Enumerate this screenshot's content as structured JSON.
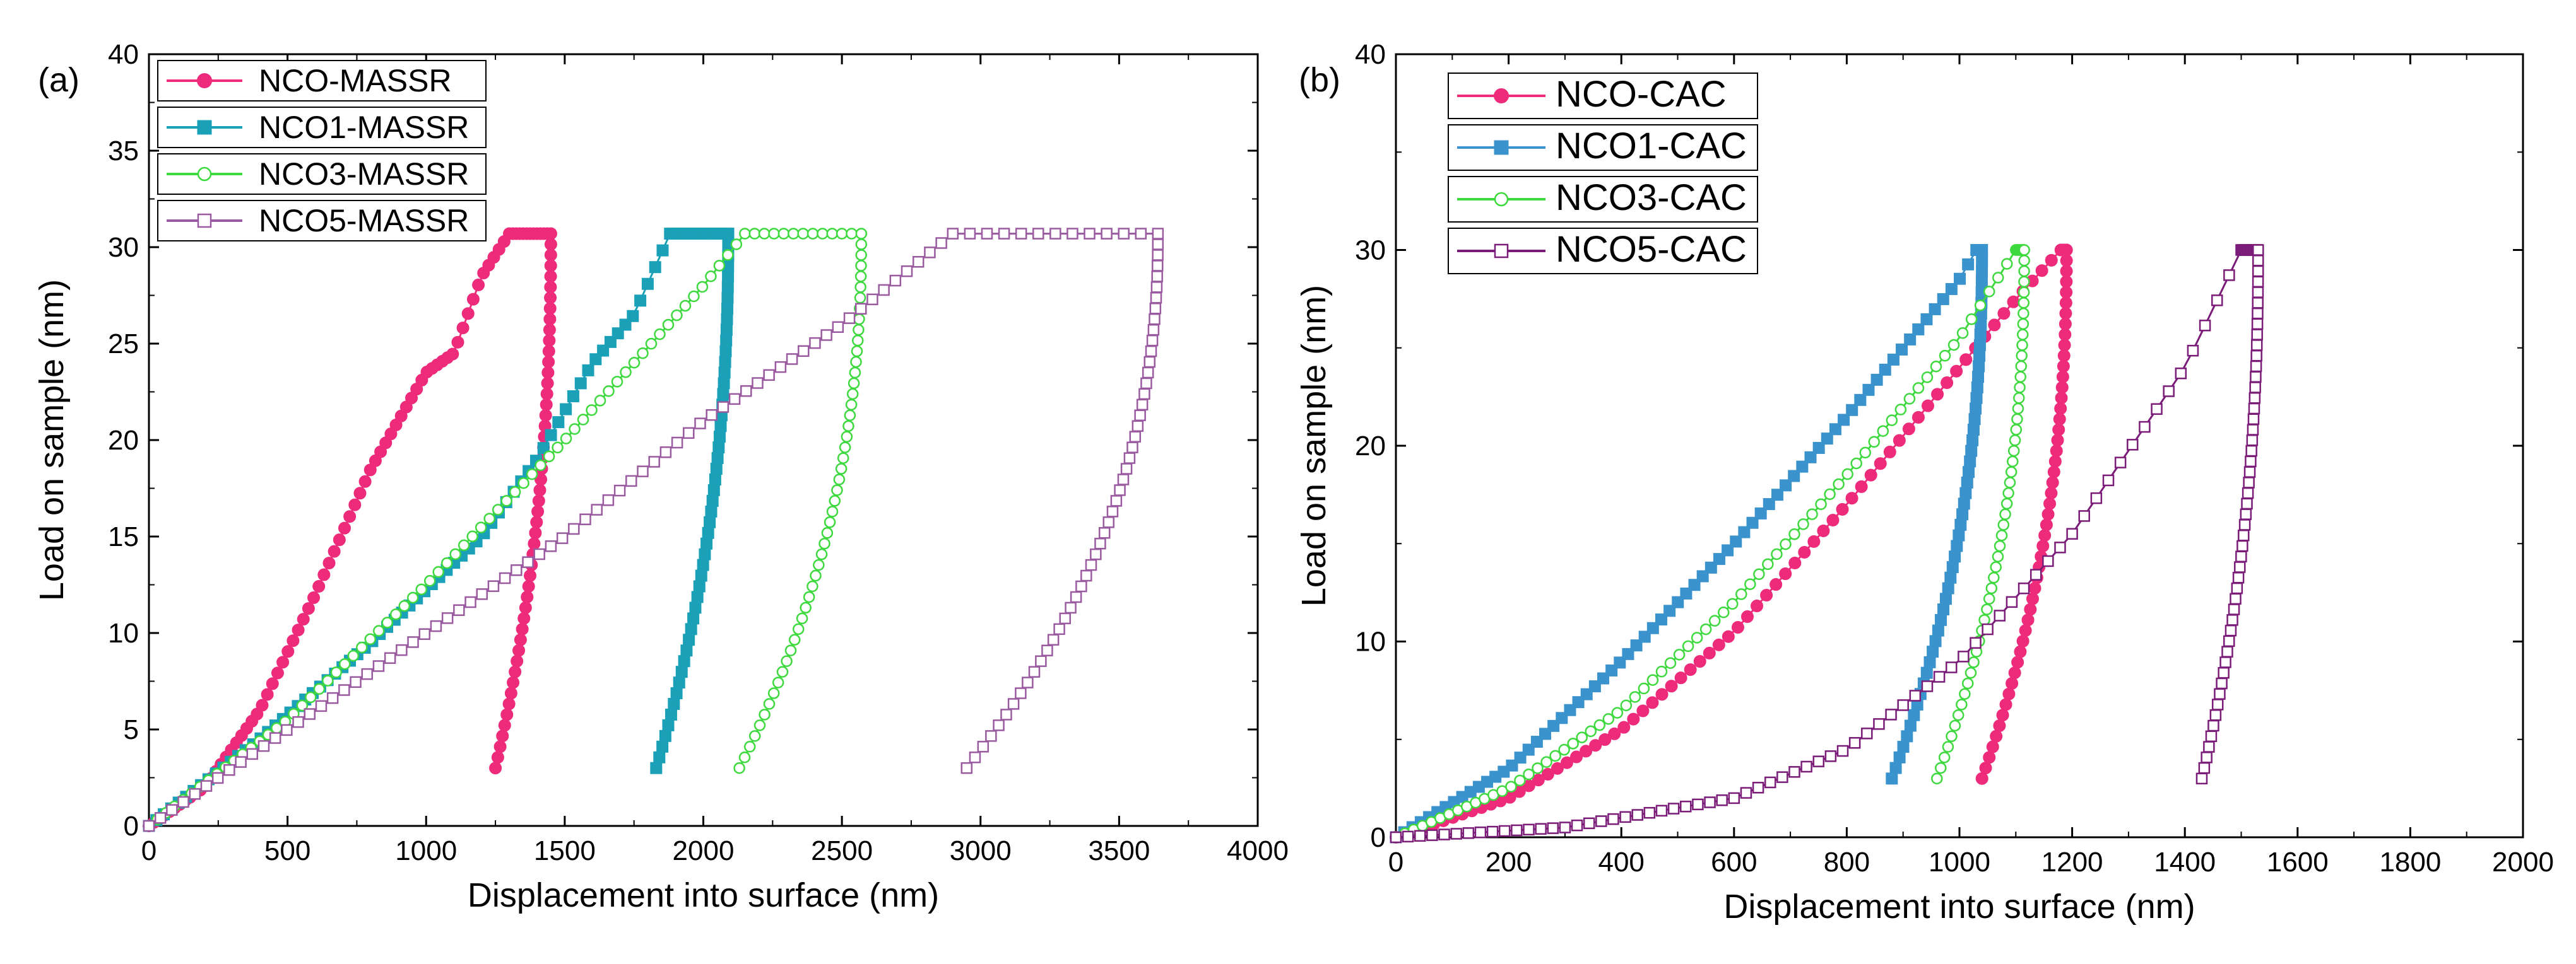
{
  "chart_data": [
    {
      "type": "scatter",
      "panel_label": "(a)",
      "xlabel": "Displacement into surface (nm)",
      "ylabel": "Load on sample (nm)",
      "xlim": [
        0,
        4000
      ],
      "ylim": [
        0,
        40
      ],
      "xticks": [
        0,
        500,
        1000,
        1500,
        2000,
        2500,
        3000,
        3500,
        4000
      ],
      "yticks": [
        0,
        5,
        10,
        15,
        20,
        25,
        30,
        35,
        40
      ],
      "xtick_labels": [
        "0",
        "500",
        "1000",
        "1500",
        "2000",
        "2500",
        "3000",
        "3500",
        "4000"
      ],
      "ytick_labels": [
        "0",
        "5",
        "10",
        "15",
        "20",
        "25",
        "30",
        "35",
        "40"
      ],
      "legend_position": "top-left",
      "series": [
        {
          "name": "NCO-MASSR",
          "color": "#ee2a7b",
          "marker": "circle-filled",
          "loading_x": [
            0,
            200,
            400,
            600,
            800,
            1000,
            1100,
            1200,
            1300
          ],
          "loading_y": [
            0,
            2,
            6,
            12,
            18.5,
            23.5,
            24.5,
            28.5,
            30.7
          ],
          "hold_end_x": 1450,
          "unload_end_x": 1250,
          "unload_end_y": 3
        },
        {
          "name": "NCO1-MASSR",
          "color": "#1aa1b8",
          "marker": "square-filled",
          "loading_x": [
            0,
            400,
            800,
            1200,
            1400,
            1600,
            1750,
            1880
          ],
          "loading_y": [
            0,
            4.5,
            9.5,
            15,
            19,
            24,
            26.5,
            30.7
          ],
          "hold_end_x": 2090,
          "unload_end_x": 1830,
          "unload_end_y": 3
        },
        {
          "name": "NCO3-MASSR",
          "color": "#3ed93e",
          "marker": "circle-open",
          "loading_x": [
            0,
            500,
            1000,
            1500,
            2000,
            2150
          ],
          "loading_y": [
            0,
            5.5,
            12.5,
            20,
            28,
            30.7
          ],
          "hold_end_x": 2570,
          "unload_end_x": 2130,
          "unload_end_y": 3
        },
        {
          "name": "NCO5-MASSR",
          "color": "#9a5aa0",
          "marker": "square-open",
          "loading_x": [
            0,
            500,
            1000,
            1500,
            2000,
            2500,
            2900
          ],
          "loading_y": [
            0,
            5,
            10,
            15,
            21,
            26,
            30.7
          ],
          "hold_end_x": 3640,
          "unload_end_x": 2950,
          "unload_end_y": 3
        }
      ]
    },
    {
      "type": "scatter",
      "panel_label": "(b)",
      "xlabel": "Displacement into surface (nm)",
      "ylabel": "Load on sample (nm)",
      "xlim": [
        0,
        2000
      ],
      "ylim": [
        0,
        40
      ],
      "xticks": [
        0,
        200,
        400,
        600,
        800,
        1000,
        1200,
        1400,
        1600,
        1800,
        2000
      ],
      "yticks": [
        0,
        10,
        20,
        30,
        40
      ],
      "xtick_labels": [
        "0",
        "200",
        "400",
        "600",
        "800",
        "1000",
        "1200",
        "1400",
        "1600",
        "1800",
        "2000"
      ],
      "ytick_labels": [
        "0",
        "10",
        "20",
        "30",
        "40"
      ],
      "legend_position": "top-left",
      "series": [
        {
          "name": "NCO-CAC",
          "color": "#ee2a7b",
          "marker": "circle-filled",
          "loading_x": [
            0,
            200,
            400,
            600,
            800,
            1000,
            1100,
            1180
          ],
          "loading_y": [
            0,
            2,
            5.5,
            10.5,
            17,
            24,
            27.5,
            30
          ],
          "hold_end_x": 1190,
          "unload_end_x": 1040,
          "unload_end_y": 3
        },
        {
          "name": "NCO1-CAC",
          "color": "#3a93cc",
          "marker": "square-filled",
          "loading_x": [
            0,
            200,
            400,
            600,
            800,
            1000,
            1030
          ],
          "loading_y": [
            0,
            3.5,
            9,
            15,
            21.5,
            28.5,
            30
          ],
          "hold_end_x": 1040,
          "unload_end_x": 880,
          "unload_end_y": 3
        },
        {
          "name": "NCO3-CAC",
          "color": "#3ed93e",
          "marker": "circle-open",
          "loading_x": [
            0,
            200,
            400,
            600,
            800,
            1000,
            1100
          ],
          "loading_y": [
            0,
            2.5,
            6.5,
            12,
            18.5,
            25.5,
            30
          ],
          "hold_end_x": 1115,
          "unload_end_x": 960,
          "unload_end_y": 3
        },
        {
          "name": "NCO5-CAC",
          "color": "#7a1c78",
          "marker": "square-open",
          "loading_x": [
            0,
            300,
            600,
            800,
            1000,
            1200,
            1400,
            1500
          ],
          "loading_y": [
            0,
            0.5,
            2,
            4.5,
            9,
            15.5,
            24,
            30
          ],
          "hold_end_x": 1530,
          "unload_end_x": 1430,
          "unload_end_y": 3
        }
      ]
    }
  ]
}
